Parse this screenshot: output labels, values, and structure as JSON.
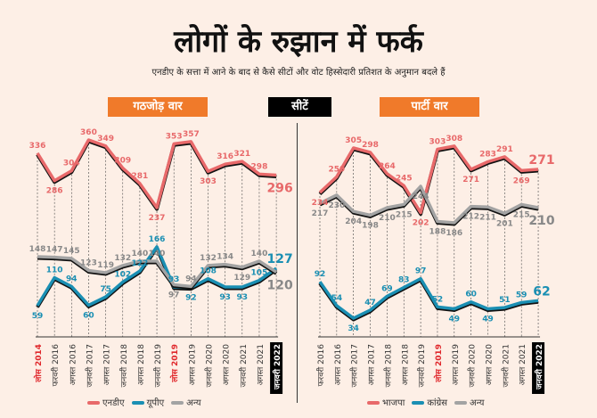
{
  "header": {
    "title": "लोगों के रुझान में फर्क",
    "subtitle": "एनडीए के सत्ता में आने के बाद से कैसे सीटों और वोट हिस्सेदारी प्रतिशत के अनुमान बदले हैं",
    "left_tag": "गठजोड़ वार",
    "mid_tag": "सीटें",
    "right_tag": "पार्टी वार"
  },
  "colors": {
    "background": "#fdefe6",
    "accent": "#f07a2a",
    "red": "#e8696a",
    "blue": "#1a8fb3",
    "gray": "#a3a3a3"
  },
  "chart_data": [
    {
      "type": "line",
      "title": "गठजोड़ वार",
      "categories": [
        "लोस 2014",
        "फरवरी 2016",
        "अगस्त 2016",
        "जनवरी 2017",
        "अगस्त 2017",
        "जनवरी 2018",
        "अगस्त 2018",
        "जनवरी 2019",
        "लोस 2019",
        "अगस्त 2019",
        "जनवरी 2020",
        "अगस्त 2020",
        "जनवरी 2021",
        "अगस्त 2021",
        "जनवरी 2022"
      ],
      "series": [
        {
          "name": "एनडीए",
          "color": "#e8696a",
          "values": [
            336,
            286,
            304,
            360,
            349,
            309,
            281,
            237,
            353,
            357,
            303,
            316,
            321,
            298,
            296
          ]
        },
        {
          "name": "यूपीए",
          "color": "#1a8fb3",
          "values": [
            59,
            110,
            94,
            60,
            75,
            102,
            122,
            166,
            93,
            92,
            108,
            93,
            93,
            105,
            127
          ]
        },
        {
          "name": "अन्य",
          "color": "#a3a3a3",
          "values": [
            148,
            147,
            145,
            123,
            119,
            132,
            140,
            140,
            97,
            94,
            132,
            134,
            129,
            140,
            120
          ]
        }
      ],
      "grid": "dashed vertical",
      "legend": "bottom"
    },
    {
      "type": "line",
      "title": "पार्टी वार",
      "categories": [
        "फरवरी 2016",
        "अगस्त 2016",
        "जनवरी 2017",
        "अगस्त 2017",
        "जनवरी 2018",
        "अगस्त 2018",
        "जनवरी 2019",
        "लोस 2019",
        "अगस्त 2019",
        "जनवरी 2020",
        "अगस्त 2020",
        "जनवरी 2021",
        "अगस्त 2021",
        "जनवरी 2022"
      ],
      "series": [
        {
          "name": "भाजपा",
          "color": "#e8696a",
          "values": [
            234,
            259,
            305,
            298,
            264,
            245,
            202,
            303,
            308,
            271,
            283,
            291,
            269,
            271
          ]
        },
        {
          "name": "कांग्रेस",
          "color": "#1a8fb3",
          "values": [
            92,
            54,
            34,
            47,
            69,
            83,
            97,
            52,
            49,
            60,
            49,
            51,
            59,
            62
          ]
        },
        {
          "name": "अन्य",
          "color": "#a3a3a3",
          "values": [
            217,
            230,
            204,
            198,
            210,
            215,
            244,
            188,
            186,
            212,
            211,
            201,
            215,
            210
          ]
        }
      ],
      "grid": "dashed vertical",
      "legend": "bottom"
    }
  ]
}
